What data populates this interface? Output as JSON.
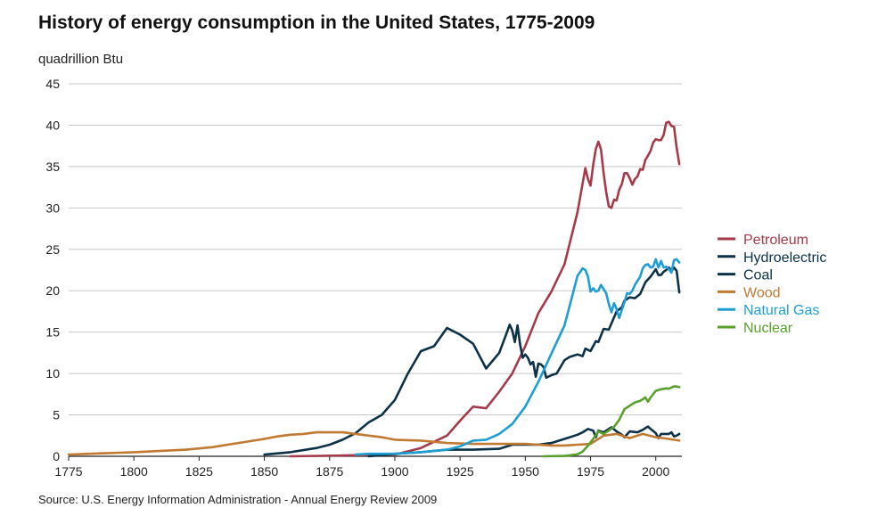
{
  "chart_data": {
    "type": "line",
    "title": "History of energy consumption in the United States, 1775-2009",
    "ylabel": "quadrillion Btu",
    "xlabel": "",
    "source": "Source: U.S. Energy Information Administration - Annual Energy Review 2009",
    "xlim": [
      1775,
      2010
    ],
    "ylim": [
      0,
      45
    ],
    "x_ticks": [
      1775,
      1800,
      1825,
      1850,
      1875,
      1900,
      1925,
      1950,
      1975,
      2000
    ],
    "y_ticks": [
      0,
      5,
      10,
      15,
      20,
      25,
      30,
      35,
      40,
      45
    ],
    "grid": true,
    "legend_position": "right",
    "series": [
      {
        "name": "Petroleum",
        "color": "#a63a4a",
        "points": [
          [
            1860,
            0
          ],
          [
            1880,
            0.1
          ],
          [
            1900,
            0.2
          ],
          [
            1910,
            1
          ],
          [
            1920,
            2.5
          ],
          [
            1925,
            4.3
          ],
          [
            1930,
            6
          ],
          [
            1935,
            5.8
          ],
          [
            1940,
            7.8
          ],
          [
            1945,
            10
          ],
          [
            1950,
            13.3
          ],
          [
            1955,
            17.3
          ],
          [
            1960,
            19.9
          ],
          [
            1965,
            23.2
          ],
          [
            1970,
            29.5
          ],
          [
            1972,
            33
          ],
          [
            1973,
            34.8
          ],
          [
            1974,
            33.5
          ],
          [
            1975,
            32.7
          ],
          [
            1976,
            35.2
          ],
          [
            1977,
            37.1
          ],
          [
            1978,
            38
          ],
          [
            1979,
            37.1
          ],
          [
            1980,
            34.2
          ],
          [
            1981,
            31.9
          ],
          [
            1982,
            30.2
          ],
          [
            1983,
            30
          ],
          [
            1984,
            31
          ],
          [
            1985,
            30.9
          ],
          [
            1986,
            32.2
          ],
          [
            1987,
            32.9
          ],
          [
            1988,
            34.2
          ],
          [
            1989,
            34.2
          ],
          [
            1990,
            33.6
          ],
          [
            1991,
            32.8
          ],
          [
            1992,
            33.5
          ],
          [
            1993,
            33.8
          ],
          [
            1994,
            34.7
          ],
          [
            1995,
            34.6
          ],
          [
            1996,
            35.8
          ],
          [
            1997,
            36.3
          ],
          [
            1998,
            36.9
          ],
          [
            1999,
            37.9
          ],
          [
            2000,
            38.3
          ],
          [
            2001,
            38.2
          ],
          [
            2002,
            38.2
          ],
          [
            2003,
            38.8
          ],
          [
            2004,
            40.3
          ],
          [
            2005,
            40.4
          ],
          [
            2006,
            39.9
          ],
          [
            2007,
            39.8
          ],
          [
            2008,
            37.3
          ],
          [
            2009,
            35.3
          ]
        ]
      },
      {
        "name": "Hydroelectric",
        "color": "#0d3147",
        "points": [
          [
            1890,
            0
          ],
          [
            1900,
            0.3
          ],
          [
            1910,
            0.5
          ],
          [
            1920,
            0.8
          ],
          [
            1930,
            0.8
          ],
          [
            1940,
            0.9
          ],
          [
            1945,
            1.4
          ],
          [
            1950,
            1.4
          ],
          [
            1955,
            1.4
          ],
          [
            1960,
            1.6
          ],
          [
            1965,
            2.1
          ],
          [
            1970,
            2.6
          ],
          [
            1972,
            2.9
          ],
          [
            1974,
            3.3
          ],
          [
            1976,
            3.1
          ],
          [
            1977,
            2.3
          ],
          [
            1978,
            3.1
          ],
          [
            1980,
            2.9
          ],
          [
            1983,
            3.5
          ],
          [
            1985,
            3
          ],
          [
            1987,
            2.6
          ],
          [
            1988,
            2.3
          ],
          [
            1990,
            3
          ],
          [
            1993,
            2.9
          ],
          [
            1995,
            3.2
          ],
          [
            1997,
            3.6
          ],
          [
            1998,
            3.3
          ],
          [
            2000,
            2.8
          ],
          [
            2001,
            2.2
          ],
          [
            2002,
            2.7
          ],
          [
            2005,
            2.7
          ],
          [
            2006,
            2.9
          ],
          [
            2007,
            2.4
          ],
          [
            2008,
            2.5
          ],
          [
            2009,
            2.7
          ]
        ]
      },
      {
        "name": "Coal",
        "color": "#0d3147",
        "points": [
          [
            1850,
            0.2
          ],
          [
            1860,
            0.5
          ],
          [
            1870,
            1
          ],
          [
            1875,
            1.4
          ],
          [
            1880,
            2
          ],
          [
            1885,
            2.8
          ],
          [
            1890,
            4.1
          ],
          [
            1895,
            5
          ],
          [
            1900,
            6.8
          ],
          [
            1905,
            10
          ],
          [
            1910,
            12.7
          ],
          [
            1915,
            13.3
          ],
          [
            1920,
            15.5
          ],
          [
            1925,
            14.7
          ],
          [
            1930,
            13.6
          ],
          [
            1935,
            10.6
          ],
          [
            1940,
            12.5
          ],
          [
            1943,
            15
          ],
          [
            1944,
            15.9
          ],
          [
            1945,
            15.2
          ],
          [
            1946,
            13.8
          ],
          [
            1947,
            15.8
          ],
          [
            1948,
            13.5
          ],
          [
            1949,
            11.9
          ],
          [
            1950,
            12.3
          ],
          [
            1951,
            11.9
          ],
          [
            1952,
            11.1
          ],
          [
            1953,
            11.4
          ],
          [
            1954,
            9.6
          ],
          [
            1955,
            11.2
          ],
          [
            1956,
            11.1
          ],
          [
            1957,
            10.8
          ],
          [
            1958,
            9.5
          ],
          [
            1960,
            9.8
          ],
          [
            1962,
            10
          ],
          [
            1965,
            11.6
          ],
          [
            1967,
            12
          ],
          [
            1970,
            12.3
          ],
          [
            1972,
            12.1
          ],
          [
            1973,
            13
          ],
          [
            1975,
            12.7
          ],
          [
            1977,
            13.9
          ],
          [
            1978,
            13.8
          ],
          [
            1980,
            15.4
          ],
          [
            1982,
            15.3
          ],
          [
            1985,
            17.5
          ],
          [
            1987,
            18
          ],
          [
            1988,
            18.8
          ],
          [
            1990,
            19.2
          ],
          [
            1992,
            19.1
          ],
          [
            1994,
            19.6
          ],
          [
            1996,
            21
          ],
          [
            1998,
            21.7
          ],
          [
            2000,
            22.6
          ],
          [
            2001,
            21.9
          ],
          [
            2002,
            21.9
          ],
          [
            2003,
            22.3
          ],
          [
            2004,
            22.5
          ],
          [
            2005,
            22.8
          ],
          [
            2006,
            22.4
          ],
          [
            2007,
            22.8
          ],
          [
            2008,
            22.4
          ],
          [
            2009,
            19.8
          ]
        ]
      },
      {
        "name": "Wood",
        "color": "#c27a33",
        "points": [
          [
            1775,
            0.2
          ],
          [
            1800,
            0.5
          ],
          [
            1820,
            0.8
          ],
          [
            1830,
            1.1
          ],
          [
            1840,
            1.6
          ],
          [
            1850,
            2.1
          ],
          [
            1855,
            2.4
          ],
          [
            1860,
            2.6
          ],
          [
            1865,
            2.7
          ],
          [
            1870,
            2.9
          ],
          [
            1875,
            2.9
          ],
          [
            1880,
            2.9
          ],
          [
            1885,
            2.7
          ],
          [
            1890,
            2.5
          ],
          [
            1895,
            2.3
          ],
          [
            1900,
            2.0
          ],
          [
            1910,
            1.9
          ],
          [
            1920,
            1.6
          ],
          [
            1930,
            1.5
          ],
          [
            1940,
            1.5
          ],
          [
            1950,
            1.5
          ],
          [
            1955,
            1.4
          ],
          [
            1960,
            1.3
          ],
          [
            1965,
            1.3
          ],
          [
            1970,
            1.4
          ],
          [
            1975,
            1.5
          ],
          [
            1980,
            2.5
          ],
          [
            1985,
            2.7
          ],
          [
            1990,
            2.2
          ],
          [
            1995,
            2.7
          ],
          [
            2000,
            2.3
          ],
          [
            2005,
            2.1
          ],
          [
            2009,
            1.9
          ]
        ]
      },
      {
        "name": "Natural Gas",
        "color": "#1e9fd4",
        "points": [
          [
            1885,
            0.2
          ],
          [
            1890,
            0.3
          ],
          [
            1900,
            0.3
          ],
          [
            1910,
            0.5
          ],
          [
            1920,
            0.8
          ],
          [
            1925,
            1.2
          ],
          [
            1930,
            1.9
          ],
          [
            1935,
            2
          ],
          [
            1940,
            2.7
          ],
          [
            1945,
            3.9
          ],
          [
            1950,
            6
          ],
          [
            1955,
            9
          ],
          [
            1960,
            12.4
          ],
          [
            1965,
            15.8
          ],
          [
            1970,
            21.8
          ],
          [
            1972,
            22.7
          ],
          [
            1973,
            22.5
          ],
          [
            1974,
            21.7
          ],
          [
            1975,
            19.9
          ],
          [
            1976,
            20.3
          ],
          [
            1977,
            19.9
          ],
          [
            1978,
            20
          ],
          [
            1979,
            20.7
          ],
          [
            1980,
            20.2
          ],
          [
            1981,
            19.7
          ],
          [
            1982,
            18.4
          ],
          [
            1983,
            17.4
          ],
          [
            1984,
            18.5
          ],
          [
            1985,
            17.8
          ],
          [
            1986,
            16.7
          ],
          [
            1987,
            17.7
          ],
          [
            1988,
            18.6
          ],
          [
            1989,
            19.7
          ],
          [
            1990,
            19.6
          ],
          [
            1991,
            20
          ],
          [
            1992,
            20.7
          ],
          [
            1993,
            21.2
          ],
          [
            1994,
            21.7
          ],
          [
            1995,
            22.7
          ],
          [
            1996,
            23.1
          ],
          [
            1997,
            23.2
          ],
          [
            1998,
            22.8
          ],
          [
            1999,
            22.9
          ],
          [
            2000,
            23.8
          ],
          [
            2001,
            22.8
          ],
          [
            2002,
            23.6
          ],
          [
            2003,
            22.8
          ],
          [
            2004,
            22.9
          ],
          [
            2005,
            22.6
          ],
          [
            2006,
            22.2
          ],
          [
            2007,
            23.7
          ],
          [
            2008,
            23.8
          ],
          [
            2009,
            23.4
          ]
        ]
      },
      {
        "name": "Nuclear",
        "color": "#5aa02c",
        "points": [
          [
            1957,
            0
          ],
          [
            1965,
            0.04
          ],
          [
            1970,
            0.24
          ],
          [
            1972,
            0.58
          ],
          [
            1974,
            1.27
          ],
          [
            1976,
            2.1
          ],
          [
            1978,
            3.0
          ],
          [
            1980,
            2.7
          ],
          [
            1982,
            3.1
          ],
          [
            1984,
            3.55
          ],
          [
            1986,
            4.4
          ],
          [
            1988,
            5.7
          ],
          [
            1990,
            6.1
          ],
          [
            1992,
            6.5
          ],
          [
            1994,
            6.7
          ],
          [
            1996,
            7.1
          ],
          [
            1997,
            6.6
          ],
          [
            1998,
            7.1
          ],
          [
            2000,
            7.9
          ],
          [
            2002,
            8.1
          ],
          [
            2004,
            8.2
          ],
          [
            2005,
            8.16
          ],
          [
            2007,
            8.45
          ],
          [
            2008,
            8.43
          ],
          [
            2009,
            8.35
          ]
        ]
      }
    ]
  }
}
